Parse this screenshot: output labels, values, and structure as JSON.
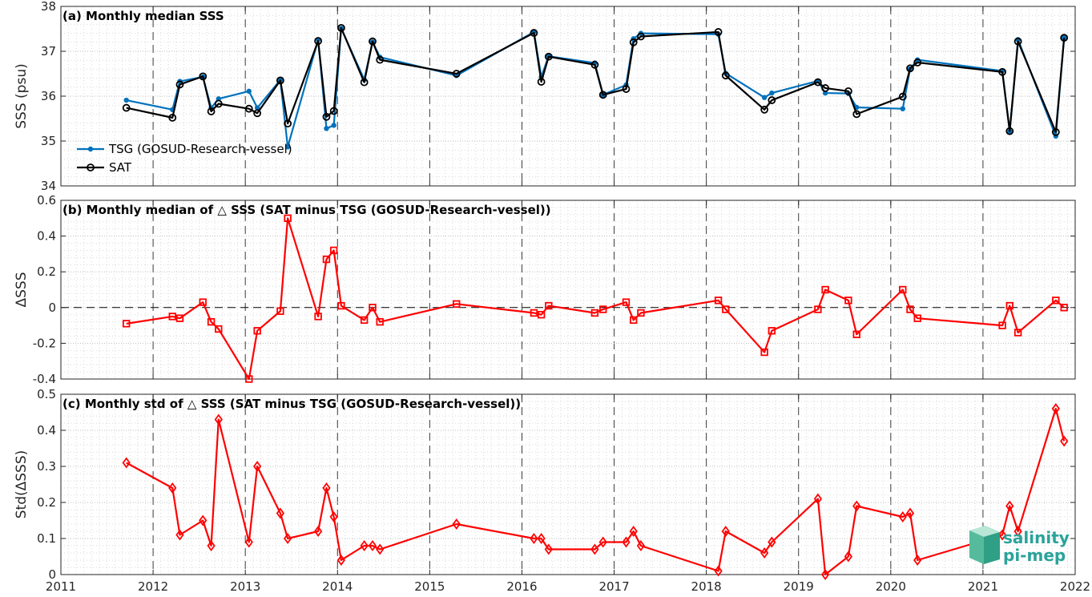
{
  "chart_data": [
    {
      "type": "line",
      "title": "(a) Monthly median SSS",
      "ylabel": "SSS (psu)",
      "xlim": [
        2011,
        2022
      ],
      "ylim": [
        34,
        38
      ],
      "yticks": [
        "34",
        "35",
        "36",
        "37",
        "38"
      ],
      "grid": true,
      "legend_position": "bottom-left",
      "series": [
        {
          "name": "TSG (GOSUD-Research-vessel)",
          "color": "#0072BD",
          "marker": "dot",
          "x": [
            2011.71,
            2012.21,
            2012.29,
            2012.54,
            2012.63,
            2012.71,
            2013.04,
            2013.13,
            2013.38,
            2013.46,
            2013.79,
            2013.88,
            2013.96,
            2014.04,
            2014.29,
            2014.38,
            2014.46,
            2015.29,
            2016.13,
            2016.21,
            2016.29,
            2016.79,
            2016.88,
            2017.13,
            2017.21,
            2017.29,
            2018.13,
            2018.21,
            2018.63,
            2018.71,
            2019.21,
            2019.29,
            2019.54,
            2019.63,
            2020.13,
            2020.21,
            2020.29,
            2021.21,
            2021.29,
            2021.38,
            2021.79,
            2021.88
          ],
          "y": [
            35.91,
            35.7,
            36.33,
            36.43,
            35.74,
            35.94,
            36.11,
            35.74,
            36.36,
            34.87,
            37.26,
            35.28,
            35.35,
            37.51,
            36.37,
            37.21,
            36.87,
            36.46,
            37.43,
            36.43,
            36.89,
            36.74,
            36.03,
            36.25,
            37.28,
            37.4,
            37.38,
            36.51,
            35.97,
            36.07,
            36.34,
            36.07,
            36.06,
            35.75,
            35.72,
            36.61,
            36.81,
            36.56,
            35.21,
            37.26,
            35.11,
            37.3
          ]
        },
        {
          "name": "SAT",
          "color": "#000000",
          "marker": "circle",
          "x": [
            2011.71,
            2012.21,
            2012.29,
            2012.54,
            2012.63,
            2012.71,
            2013.04,
            2013.13,
            2013.38,
            2013.46,
            2013.79,
            2013.88,
            2013.96,
            2014.04,
            2014.29,
            2014.38,
            2014.46,
            2015.29,
            2016.13,
            2016.21,
            2016.29,
            2016.79,
            2016.88,
            2017.13,
            2017.21,
            2017.29,
            2018.13,
            2018.21,
            2018.63,
            2018.71,
            2019.21,
            2019.29,
            2019.54,
            2019.63,
            2020.13,
            2020.21,
            2020.29,
            2021.21,
            2021.29,
            2021.38,
            2021.79,
            2021.88
          ],
          "y": [
            35.74,
            35.52,
            36.26,
            36.44,
            35.66,
            35.83,
            35.72,
            35.62,
            36.35,
            35.39,
            37.23,
            35.54,
            35.67,
            37.52,
            36.31,
            37.22,
            36.81,
            36.5,
            37.41,
            36.32,
            36.88,
            36.7,
            36.03,
            36.16,
            37.2,
            37.33,
            37.43,
            36.46,
            35.7,
            35.91,
            36.31,
            36.18,
            36.11,
            35.6,
            35.99,
            36.62,
            36.75,
            36.54,
            35.22,
            37.22,
            35.2,
            37.3
          ]
        }
      ]
    },
    {
      "type": "line",
      "title": "(b) Monthly median of △ SSS (SAT minus TSG (GOSUD-Research-vessel))",
      "ylabel": "ΔSSS",
      "xlim": [
        2011,
        2022
      ],
      "ylim": [
        -0.4,
        0.6
      ],
      "yticks": [
        "-0.4",
        "-0.2",
        "0",
        "0.2",
        "0.4",
        "0.6"
      ],
      "grid": true,
      "reference_line": 0,
      "series": [
        {
          "name": "",
          "color": "#FF0000",
          "marker": "square",
          "x": [
            2011.71,
            2012.21,
            2012.29,
            2012.54,
            2012.63,
            2012.71,
            2013.04,
            2013.13,
            2013.38,
            2013.46,
            2013.79,
            2013.88,
            2013.96,
            2014.04,
            2014.29,
            2014.38,
            2014.46,
            2015.29,
            2016.13,
            2016.21,
            2016.29,
            2016.79,
            2016.88,
            2017.13,
            2017.21,
            2017.29,
            2018.13,
            2018.21,
            2018.63,
            2018.71,
            2019.21,
            2019.29,
            2019.54,
            2019.63,
            2020.13,
            2020.21,
            2020.29,
            2021.21,
            2021.29,
            2021.38,
            2021.79,
            2021.88
          ],
          "y": [
            -0.09,
            -0.05,
            -0.06,
            0.03,
            -0.08,
            -0.12,
            -0.4,
            -0.13,
            -0.02,
            0.5,
            -0.05,
            0.27,
            0.32,
            0.01,
            -0.07,
            0.0,
            -0.08,
            0.02,
            -0.03,
            -0.04,
            0.01,
            -0.03,
            -0.01,
            0.03,
            -0.07,
            -0.03,
            0.04,
            -0.01,
            -0.25,
            -0.13,
            -0.01,
            0.1,
            0.04,
            -0.15,
            0.1,
            -0.01,
            -0.06,
            -0.1,
            0.01,
            -0.14,
            0.04,
            0.0
          ]
        }
      ]
    },
    {
      "type": "line",
      "title": "(c) Monthly std of △ SSS (SAT minus TSG (GOSUD-Research-vessel))",
      "ylabel": "Std(ΔSSS)",
      "xlim": [
        2011,
        2022
      ],
      "ylim": [
        0,
        0.5
      ],
      "yticks": [
        "0",
        "0.1",
        "0.2",
        "0.3",
        "0.4",
        "0.5"
      ],
      "xticks": [
        "2011",
        "2012",
        "2013",
        "2014",
        "2015",
        "2016",
        "2017",
        "2018",
        "2019",
        "2020",
        "2021",
        "2022"
      ],
      "grid": true,
      "series": [
        {
          "name": "",
          "color": "#FF0000",
          "marker": "diamond",
          "x": [
            2011.71,
            2012.21,
            2012.29,
            2012.54,
            2012.63,
            2012.71,
            2013.04,
            2013.13,
            2013.38,
            2013.46,
            2013.79,
            2013.88,
            2013.96,
            2014.04,
            2014.29,
            2014.38,
            2014.46,
            2015.29,
            2016.13,
            2016.21,
            2016.29,
            2016.79,
            2016.88,
            2017.13,
            2017.21,
            2017.29,
            2018.13,
            2018.21,
            2018.63,
            2018.71,
            2019.21,
            2019.29,
            2019.54,
            2019.63,
            2020.13,
            2020.21,
            2020.29,
            2021.21,
            2021.29,
            2021.38,
            2021.79,
            2021.88
          ],
          "y": [
            0.31,
            0.24,
            0.11,
            0.15,
            0.08,
            0.43,
            0.09,
            0.3,
            0.17,
            0.1,
            0.12,
            0.24,
            0.16,
            0.04,
            0.08,
            0.08,
            0.07,
            0.14,
            0.1,
            0.1,
            0.07,
            0.07,
            0.09,
            0.09,
            0.12,
            0.08,
            0.01,
            0.12,
            0.06,
            0.09,
            0.21,
            0.0,
            0.05,
            0.19,
            0.16,
            0.17,
            0.04,
            0.11,
            0.19,
            0.12,
            0.46,
            0.37
          ]
        }
      ]
    }
  ],
  "logo": {
    "line1": "salinity",
    "line2": "pi-mep",
    "color": "#2aa39a"
  }
}
